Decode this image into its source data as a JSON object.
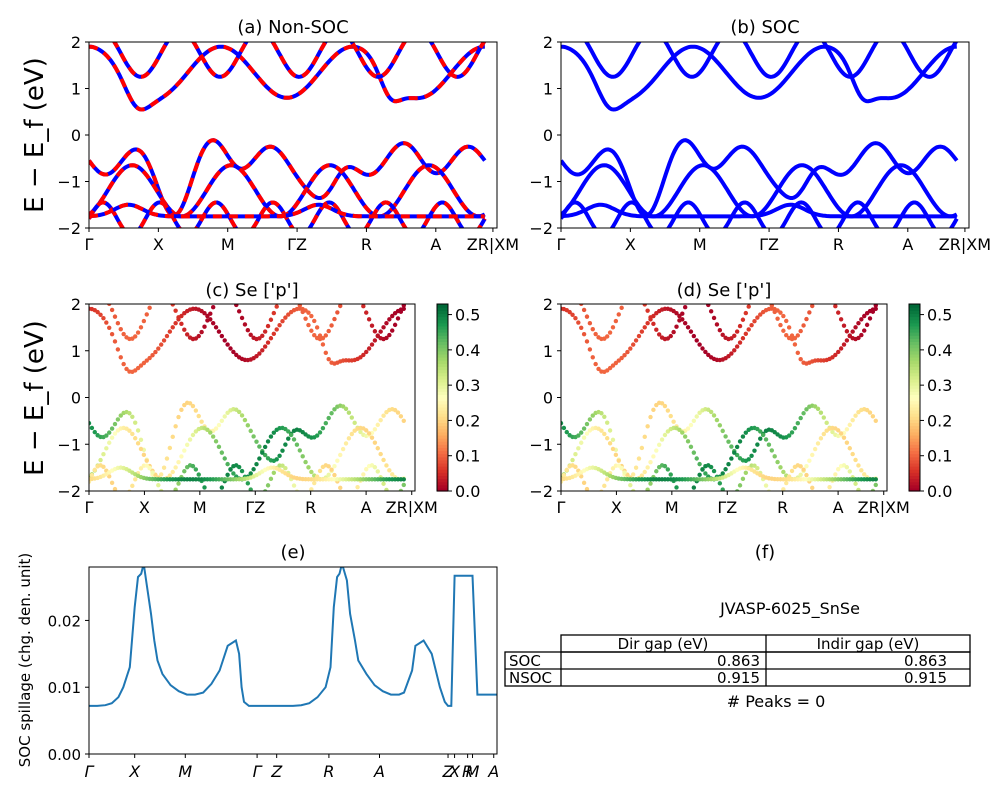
{
  "figure": {
    "panels": {
      "a": {
        "title": "(a) Non-SOC"
      },
      "b": {
        "title": "(b) SOC"
      },
      "c": {
        "title": "(c)  Se ['p']"
      },
      "d": {
        "title": "(d) Se ['p']"
      },
      "e": {
        "title": "(e)"
      },
      "f": {
        "title": "(f)"
      }
    },
    "band_ylabel": "E − E_f (eV)",
    "band_ticks": {
      "y": [
        "−2",
        "−1",
        "0",
        "1",
        "2"
      ]
    },
    "kpath_labels": [
      "Γ",
      "X",
      "M",
      "ΓZ",
      "R",
      "A",
      "ZR|XM",
      ""
    ],
    "colorbar_ticks": [
      "0.0",
      "0.1",
      "0.2",
      "0.3",
      "0.4",
      "0.5"
    ],
    "spillage": {
      "ylabel": "SOC spillage (chg. den. unit)",
      "yticks": [
        "0.00",
        "0.01",
        "0.02"
      ],
      "xlabels": [
        "Γ",
        "X",
        "M",
        "Γ",
        "Z",
        "R",
        "A",
        "Z",
        "X",
        "R",
        "M",
        "A"
      ]
    },
    "info": {
      "material": "JVASP-6025_SnSe",
      "col_headers": [
        "Dir gap (eV)",
        "Indir gap (eV)"
      ],
      "rows": [
        {
          "label": "SOC",
          "dir": "0.863",
          "indir": "0.863"
        },
        {
          "label": "NSOC",
          "dir": "0.915",
          "indir": "0.915"
        }
      ],
      "peaks": "# Peaks = 0"
    }
  },
  "chart_data": [
    {
      "type": "line",
      "title": "(a) Non-SOC",
      "ylabel": "E − E_f (eV)",
      "ylim": [
        -2,
        2
      ],
      "x_ticks": [
        "Γ",
        "X",
        "M",
        "ΓZ",
        "R",
        "A",
        "ZR|XM"
      ],
      "series_colors": [
        "#0000ff",
        "#ff0000"
      ]
    },
    {
      "type": "line",
      "title": "(b) SOC",
      "ylim": [
        -2,
        2
      ],
      "x_ticks": [
        "Γ",
        "X",
        "M",
        "ΓZ",
        "R",
        "A",
        "ZR|XM"
      ],
      "series_colors": [
        "#0000ff"
      ]
    },
    {
      "type": "scatter",
      "title": "(c)  Se ['p']",
      "ylim": [
        -2,
        2
      ],
      "colorbar_range": [
        0,
        0.53
      ]
    },
    {
      "type": "scatter",
      "title": "(d) Se ['p']",
      "ylim": [
        -2,
        2
      ],
      "colorbar_range": [
        0,
        0.53
      ]
    },
    {
      "type": "line",
      "title": "(e)",
      "ylabel": "SOC spillage (chg. den. unit)",
      "ylim": [
        0,
        0.028
      ],
      "series_color": "#1f77b4",
      "x": [
        0,
        0.5,
        1,
        1.4,
        1.8,
        2.1,
        2.5,
        2.8,
        3.0,
        3.2,
        3.35,
        3.5,
        3.8,
        4.0,
        4.2,
        4.5,
        5,
        5.5,
        6,
        6.5,
        7,
        7.5,
        8,
        8.5,
        9,
        9.2,
        9.35,
        9.5,
        9.8,
        10,
        10.5,
        11,
        11.5,
        12,
        12.5,
        13,
        13.5,
        14,
        14.5,
        14.8,
        15.0,
        15.2,
        15.35,
        15.5,
        15.8,
        16,
        16.3,
        16.5,
        17,
        17.5,
        18,
        18.5,
        19,
        19.3,
        19.5,
        19.8,
        20,
        20.5,
        21,
        21.5,
        21.8,
        22.0,
        22.2,
        22.4,
        22.8,
        23.0,
        23.2,
        23.5,
        23.8,
        24.5,
        25.0
      ],
      "values": [
        0.0072,
        0.0072,
        0.0073,
        0.0076,
        0.0085,
        0.01,
        0.013,
        0.022,
        0.0265,
        0.027,
        0.0285,
        0.026,
        0.021,
        0.017,
        0.014,
        0.012,
        0.0103,
        0.0094,
        0.0089,
        0.0089,
        0.0092,
        0.0105,
        0.0125,
        0.0162,
        0.017,
        0.015,
        0.01,
        0.0078,
        0.0072,
        0.0072,
        0.0072,
        0.0072,
        0.0072,
        0.0072,
        0.0072,
        0.0073,
        0.0076,
        0.0085,
        0.01,
        0.013,
        0.022,
        0.0265,
        0.027,
        0.0285,
        0.026,
        0.021,
        0.017,
        0.014,
        0.012,
        0.0103,
        0.0094,
        0.0089,
        0.0089,
        0.0092,
        0.0105,
        0.0125,
        0.0162,
        0.017,
        0.015,
        0.01,
        0.0078,
        0.0072,
        0.0072,
        0.0267,
        0.0267,
        0.0267,
        0.0267,
        0.0267,
        0.0089,
        0.0089,
        0.0089
      ]
    }
  ]
}
